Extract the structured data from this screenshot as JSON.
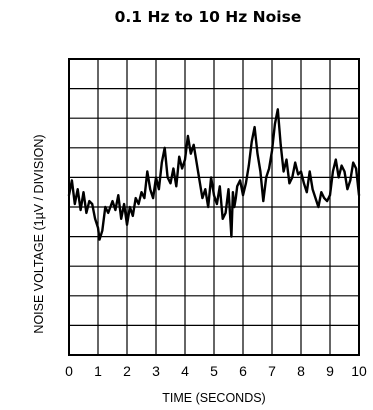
{
  "chart_data": {
    "type": "line",
    "title": "0.1 Hz to 10 Hz Noise",
    "xlabel": "TIME (SECONDS)",
    "ylabel": "NOISE VOLTAGE (1µV / DIVISION)",
    "xlim": [
      0,
      10
    ],
    "ylim": [
      0,
      10
    ],
    "x_ticks": [
      "0",
      "1",
      "2",
      "3",
      "4",
      "5",
      "6",
      "7",
      "8",
      "9",
      "10"
    ],
    "grid": true,
    "legend": "none",
    "line_color": "#000000",
    "series": [
      {
        "x": [
          0.0,
          0.1,
          0.2,
          0.3,
          0.4,
          0.5,
          0.6,
          0.7,
          0.8,
          0.9,
          1.0,
          1.05,
          1.15,
          1.25,
          1.35,
          1.5,
          1.6,
          1.7,
          1.8,
          1.9,
          2.0,
          2.1,
          2.2,
          2.3,
          2.4,
          2.5,
          2.6,
          2.7,
          2.8,
          2.9,
          3.0,
          3.1,
          3.2,
          3.3,
          3.4,
          3.5,
          3.6,
          3.7,
          3.8,
          3.9,
          4.0,
          4.1,
          4.2,
          4.3,
          4.4,
          4.5,
          4.6,
          4.7,
          4.8,
          4.9,
          5.0,
          5.1,
          5.2,
          5.3,
          5.4,
          5.5,
          5.6,
          5.65,
          5.7,
          5.75,
          5.8,
          5.9,
          6.0,
          6.1,
          6.2,
          6.3,
          6.4,
          6.5,
          6.6,
          6.7,
          6.8,
          6.9,
          7.0,
          7.1,
          7.2,
          7.3,
          7.4,
          7.5,
          7.6,
          7.7,
          7.8,
          7.9,
          8.0,
          8.1,
          8.2,
          8.3,
          8.4,
          8.5,
          8.6,
          8.7,
          8.8,
          8.9,
          9.0,
          9.1,
          9.2,
          9.3,
          9.4,
          9.5,
          9.6,
          9.7,
          9.8,
          9.9,
          10.0
        ],
        "y": [
          5.4,
          5.9,
          5.1,
          5.6,
          4.9,
          5.5,
          4.8,
          5.2,
          5.1,
          4.6,
          4.3,
          3.9,
          4.2,
          5.0,
          4.8,
          5.2,
          4.9,
          5.4,
          4.6,
          5.1,
          4.4,
          5.0,
          4.7,
          5.3,
          5.1,
          5.5,
          5.3,
          6.2,
          5.6,
          5.3,
          6.0,
          5.6,
          6.5,
          7.0,
          6.0,
          5.8,
          6.3,
          5.7,
          6.7,
          6.3,
          6.6,
          7.4,
          6.8,
          7.1,
          6.5,
          5.9,
          5.3,
          5.6,
          5.0,
          6.0,
          5.4,
          5.1,
          5.7,
          4.6,
          4.8,
          5.6,
          4.0,
          5.5,
          5.0,
          5.3,
          5.7,
          5.9,
          5.4,
          5.8,
          6.4,
          7.2,
          7.7,
          6.8,
          6.2,
          5.2,
          6.0,
          6.3,
          6.9,
          7.8,
          8.3,
          7.1,
          6.2,
          6.6,
          5.8,
          6.0,
          6.5,
          6.1,
          6.2,
          5.8,
          5.5,
          6.2,
          5.6,
          5.3,
          5.0,
          5.5,
          5.3,
          5.2,
          5.4,
          6.2,
          6.6,
          6.0,
          6.4,
          6.2,
          5.6,
          5.9,
          6.5,
          6.3,
          5.4
        ]
      }
    ]
  }
}
